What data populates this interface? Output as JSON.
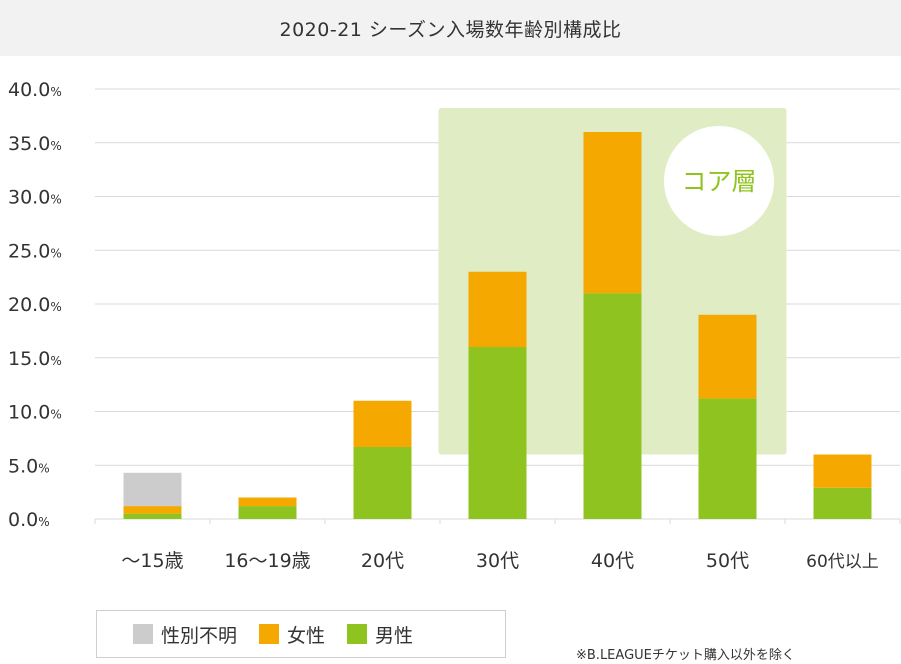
{
  "title": "2020-21 シーズン入場数年齢別構成比",
  "footnote": "※B.LEAGUEチケット購入以外を除く",
  "core_label": "コア層",
  "colors": {
    "male": "#8fc31f",
    "female": "#f5a800",
    "unknown": "#cccccc",
    "core_band": "#e0edc4",
    "core_text": "#8fc31f",
    "grid": "#d9d9d9"
  },
  "legend": [
    {
      "name": "性別不明",
      "color": "#cccccc"
    },
    {
      "name": "女性",
      "color": "#f5a800"
    },
    {
      "name": "男性",
      "color": "#8fc31f"
    }
  ],
  "chart_data": {
    "type": "bar",
    "stacked": true,
    "categories": [
      "〜15歳",
      "16〜19歳",
      "20代",
      "30代",
      "40代",
      "50代",
      "60代以上"
    ],
    "series": [
      {
        "name": "男性",
        "values": [
          0.5,
          1.2,
          6.7,
          16.0,
          21.0,
          11.2,
          2.9
        ]
      },
      {
        "name": "女性",
        "values": [
          0.7,
          0.8,
          4.3,
          7.0,
          15.0,
          7.8,
          3.1
        ]
      },
      {
        "name": "性別不明",
        "values": [
          3.1,
          0.0,
          0.0,
          0.0,
          0.0,
          0.0,
          0.0
        ]
      }
    ],
    "ylim": [
      0,
      40
    ],
    "yticks": [
      "0.0%",
      "5.0%",
      "10.0%",
      "15.0%",
      "20.0%",
      "25.0%",
      "30.0%",
      "35.0%",
      "40.0%"
    ],
    "core_categories": [
      "30代",
      "40代",
      "50代"
    ],
    "grid": true,
    "legend_position": "bottom-left"
  }
}
